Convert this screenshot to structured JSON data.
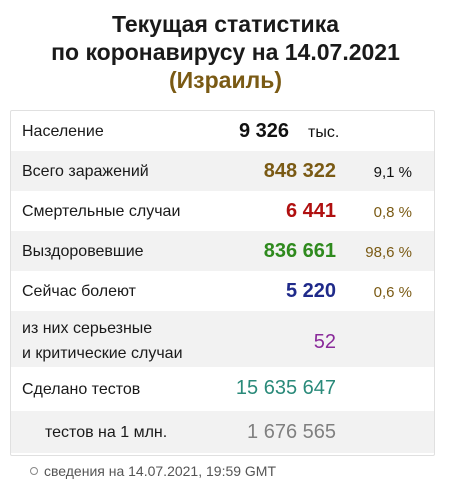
{
  "header": {
    "line1": "Текущая статистика",
    "line2": "по коронавирусу на 14.07.2021",
    "country": "(Израиль)"
  },
  "rows": {
    "population": {
      "label": "Население",
      "value": "9 326",
      "unit": "тыс."
    },
    "infections": {
      "label": "Всего заражений",
      "value": "848 322",
      "pct": "9,1 %"
    },
    "deaths": {
      "label": "Смертельные случаи",
      "value": "6 441",
      "pct": "0,8 %"
    },
    "recovered": {
      "label": "Выздоровевшие",
      "value": "836 661",
      "pct": "98,6 %"
    },
    "sick": {
      "label": "Сейчас болеют",
      "value": "5 220",
      "pct": "0,6 %"
    },
    "critical": {
      "label_line1": "из них серьезные",
      "label_line2": "и критические случаи",
      "value": "52"
    },
    "tests": {
      "label": "Сделано тестов",
      "value": "15 635 647"
    },
    "tests_per_million": {
      "label": "тестов на 1 млн.",
      "value": "1 676 565"
    }
  },
  "footer": {
    "text": "сведения на 14.07.2021, 19:59 GMT"
  },
  "colors": {
    "infections": "#7a5a14",
    "deaths": "#b01010",
    "recovered": "#2f8a1e",
    "sick": "#1f2a8a",
    "critical": "#8a2a9a",
    "tests": "#2a8a7a",
    "tests_per_million": "#808080"
  }
}
